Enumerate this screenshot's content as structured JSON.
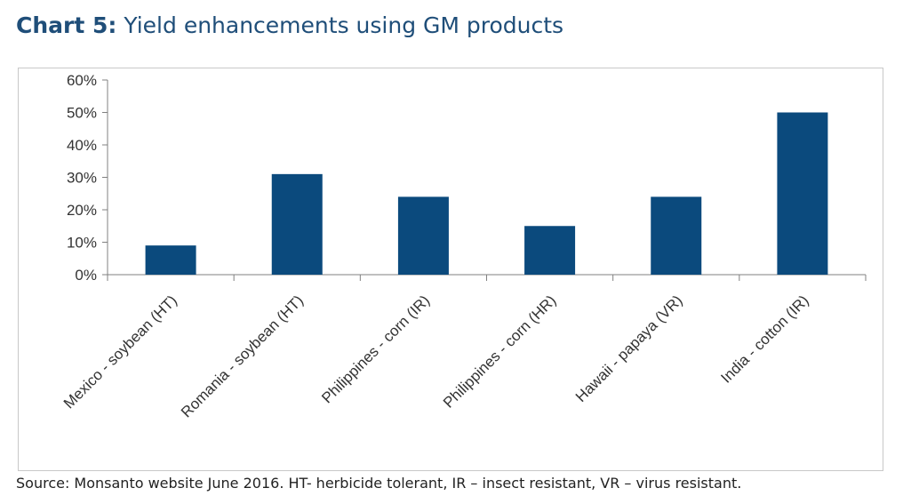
{
  "header": {
    "title_prefix": "Chart 5:",
    "title_text": " Yield enhancements using GM products"
  },
  "footer": {
    "source": "Source: Monsanto website June 2016. HT- herbicide tolerant, IR – insect resistant, VR – virus resistant."
  },
  "chart_data": {
    "type": "bar",
    "categories": [
      "Mexico - soybean (HT)",
      "Romania - soybean (HT)",
      "Philippines - corn (IR)",
      "Philippines - corn (HR)",
      "Hawaii - papaya (VR)",
      "India - cotton (IR)"
    ],
    "values": [
      0.09,
      0.31,
      0.24,
      0.15,
      0.24,
      0.5
    ],
    "ylim": [
      0,
      0.6
    ],
    "yticks": [
      0,
      0.1,
      0.2,
      0.3,
      0.4,
      0.5,
      0.6
    ],
    "ytick_labels": [
      "0%",
      "10%",
      "20%",
      "30%",
      "40%",
      "50%",
      "60%"
    ],
    "title": "",
    "xlabel": "",
    "ylabel": "",
    "grid": false,
    "legend": "none",
    "bar_color": "#0b4a7d"
  }
}
